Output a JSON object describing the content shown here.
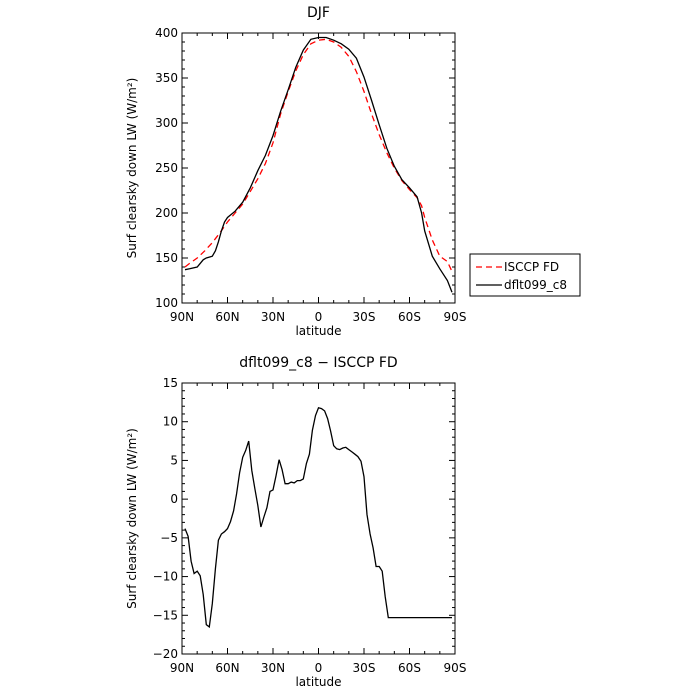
{
  "chart_data": [
    {
      "type": "line",
      "title": "DJF",
      "xlabel": "latitude",
      "ylabel": "Surf clearsky down LW (W/m²)",
      "xlim": [
        -90,
        90
      ],
      "ylim": [
        100,
        400
      ],
      "xticks": [
        -90,
        -60,
        -30,
        0,
        30,
        60,
        90
      ],
      "xtick_labels": [
        "90N",
        "60N",
        "30N",
        "0",
        "30S",
        "60S",
        "90S"
      ],
      "yticks": [
        100,
        150,
        200,
        250,
        300,
        350,
        400
      ],
      "ytick_labels": [
        "100",
        "150",
        "200",
        "250",
        "300",
        "350",
        "400"
      ],
      "legend_position": "right",
      "series": [
        {
          "name": "ISCCP FD",
          "color": "#ff0000",
          "dash": "dashed",
          "x": [
            -88,
            -85,
            -80,
            -75,
            -70,
            -65,
            -60,
            -55,
            -50,
            -45,
            -40,
            -35,
            -30,
            -25,
            -20,
            -15,
            -10,
            -5,
            0,
            5,
            10,
            15,
            20,
            25,
            30,
            35,
            40,
            45,
            50,
            55,
            60,
            65,
            68,
            70,
            75,
            80,
            85,
            88
          ],
          "y": [
            140,
            144,
            150,
            158,
            167,
            178,
            190,
            200,
            210,
            224,
            238,
            255,
            278,
            310,
            335,
            358,
            376,
            388,
            392,
            393,
            390,
            384,
            374,
            357,
            335,
            310,
            287,
            267,
            250,
            236,
            226,
            217,
            208,
            195,
            170,
            152,
            146,
            135
          ]
        },
        {
          "name": "dflt099_c8",
          "color": "#000000",
          "dash": "solid",
          "x": [
            -88,
            -85,
            -80,
            -78,
            -76,
            -74,
            -72,
            -70,
            -68,
            -66,
            -64,
            -62,
            -60,
            -55,
            -50,
            -45,
            -40,
            -35,
            -30,
            -25,
            -20,
            -15,
            -10,
            -5,
            0,
            5,
            10,
            15,
            20,
            25,
            30,
            35,
            40,
            45,
            50,
            55,
            60,
            65,
            68,
            70,
            75,
            80,
            85,
            88
          ],
          "y": [
            137,
            138,
            140,
            144,
            148,
            150,
            151,
            152,
            158,
            168,
            180,
            190,
            195,
            202,
            212,
            228,
            247,
            264,
            286,
            313,
            337,
            362,
            381,
            393,
            395,
            395,
            392,
            388,
            382,
            372,
            351,
            325,
            298,
            272,
            252,
            237,
            228,
            218,
            200,
            180,
            152,
            138,
            125,
            112
          ]
        }
      ]
    },
    {
      "type": "line",
      "title": "dflt099_c8 − ISCCP FD",
      "xlabel": "latitude",
      "ylabel": "Surf clearsky down LW (W/m²)",
      "xlim": [
        -90,
        90
      ],
      "ylim": [
        -20,
        15
      ],
      "xticks": [
        -90,
        -60,
        -30,
        0,
        30,
        60,
        90
      ],
      "xtick_labels": [
        "90N",
        "60N",
        "30N",
        "0",
        "30S",
        "60S",
        "90S"
      ],
      "yticks": [
        -20,
        -15,
        -10,
        -5,
        0,
        5,
        10,
        15
      ],
      "ytick_labels": [
        "−20",
        "−15",
        "−10",
        "−5",
        "0",
        "5",
        "10",
        "15"
      ],
      "series": [
        {
          "color": "#000000",
          "dash": "solid",
          "x": [
            -88,
            -86,
            -84,
            -82,
            -80,
            -78,
            -76,
            -74,
            -72,
            -70,
            -68,
            -66,
            -64,
            -62,
            -60,
            -58,
            -56,
            -54,
            -52,
            -50,
            -48,
            -46,
            -44,
            -42,
            -40,
            -38,
            -36,
            -34,
            -32,
            -30,
            -28,
            -26,
            -24,
            -22,
            -20,
            -18,
            -16,
            -14,
            -12,
            -10,
            -8,
            -6,
            -4,
            -2,
            0,
            2,
            4,
            6,
            8,
            10,
            12,
            14,
            16,
            18,
            20,
            22,
            24,
            26,
            28,
            30,
            32,
            34,
            36,
            38,
            40,
            42,
            44,
            46,
            48,
            50,
            52,
            54,
            56,
            58,
            60,
            62,
            64,
            66,
            68,
            70,
            72,
            74,
            76,
            78,
            80,
            82,
            84,
            86,
            88
          ],
          "y": [
            -3.8,
            -4.8,
            -8.0,
            -9.6,
            -9.3,
            -9.9,
            -12.3,
            -16.2,
            -16.5,
            -13.5,
            -9.0,
            -5.3,
            -4.5,
            -4.2,
            -3.8,
            -2.9,
            -1.5,
            0.7,
            3.4,
            5.4,
            6.3,
            7.5,
            3.7,
            1.4,
            -0.8,
            -3.6,
            -2.3,
            -1.1,
            1.0,
            1.2,
            3.0,
            5.1,
            3.8,
            2.0,
            2.0,
            2.2,
            2.1,
            2.4,
            2.4,
            2.6,
            4.6,
            5.8,
            8.9,
            10.8,
            11.8,
            11.7,
            11.4,
            10.4,
            8.8,
            6.9,
            6.5,
            6.4,
            6.6,
            6.7,
            6.4,
            6.1,
            5.8,
            5.5,
            4.9,
            2.9,
            -2.0,
            -4.5,
            -6.3,
            -8.7,
            -8.7,
            -9.3,
            -12.6,
            -15.3,
            -15.3,
            -15.3,
            -15.3,
            -15.3,
            -15.3,
            -15.3,
            -15.3,
            -15.3,
            -15.3,
            -15.3,
            -15.3,
            -15.3,
            -15.3,
            -15.3,
            -15.3,
            -15.3,
            -15.3,
            -15.3,
            -15.3,
            -15.3,
            -15.3
          ]
        }
      ]
    }
  ]
}
